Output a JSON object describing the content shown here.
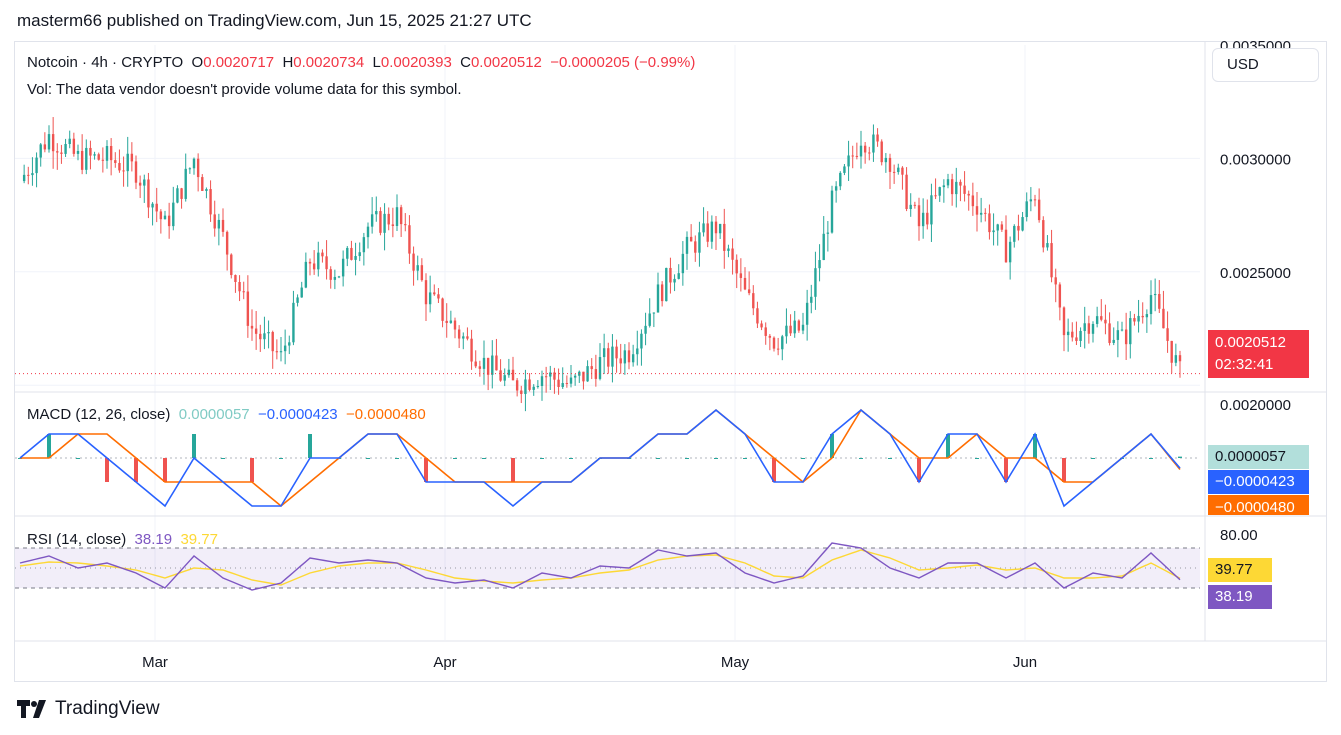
{
  "header": {
    "text": "masterm66 published on TradingView.com, Jun 15, 2025 21:27 UTC"
  },
  "legend": {
    "symbol": "Notcoin · 4h · CRYPTO",
    "o_label": "O",
    "o_value": "0.0020717",
    "h_label": "H",
    "h_value": "0.0020734",
    "l_label": "L",
    "l_value": "0.0020393",
    "c_label": "C",
    "c_value": "0.0020512",
    "change": "−0.0000205 (−0.99%)",
    "vol_text": "Vol: The data vendor doesn't provide volume data for this symbol."
  },
  "currency_button": "USD",
  "price_tag": {
    "price": "0.0020512",
    "countdown": "02:32:41",
    "color": "#f23645"
  },
  "macd": {
    "title": "MACD (12, 26, close)",
    "hist": "0.0000057",
    "macd": "−0.0000423",
    "signal": "−0.0000480",
    "tag_hist": "0.0000057",
    "tag_macd": "−0.0000423",
    "tag_signal": "−0.0000480",
    "colors": {
      "macd": "#2962ff",
      "signal": "#ff6d00",
      "hist_up": "#26a69a",
      "hist_down": "#ef5350",
      "hist_value": "#b2dfdb"
    }
  },
  "rsi": {
    "title": "RSI (14, close)",
    "value": "38.19",
    "ma": "39.77",
    "tag_value": "38.19",
    "tag_ma": "39.77",
    "colors": {
      "rsi": "#7e57c2",
      "ma": "#fdd835"
    }
  },
  "footer": {
    "brand": "TradingView",
    "logo": "tradingview-logo-icon"
  },
  "chart_data": [
    {
      "type": "candlestick",
      "title": "Notcoin · 4h · CRYPTO",
      "x_ticks": [
        "Mar",
        "Apr",
        "May",
        "Jun"
      ],
      "y_ticks": [
        "0.0030000",
        "0.0025000",
        "0.0020000"
      ],
      "y_partial_tick": "0.0035000",
      "ylim": [
        0.00197,
        0.0035
      ],
      "last_price": 0.0020512,
      "colors": {
        "up": "#26a69a",
        "down": "#ef5350"
      },
      "x": [
        "Feb 15",
        "Feb 18",
        "Feb 21",
        "Feb 24",
        "Feb 27",
        "Mar 2",
        "Mar 5",
        "Mar 8",
        "Mar 11",
        "Mar 14",
        "Mar 17",
        "Mar 20",
        "Mar 23",
        "Mar 26",
        "Mar 29",
        "Apr 1",
        "Apr 4",
        "Apr 7",
        "Apr 10",
        "Apr 13",
        "Apr 16",
        "Apr 19",
        "Apr 22",
        "Apr 25",
        "Apr 28",
        "May 1",
        "May 4",
        "May 7",
        "May 10",
        "May 13",
        "May 16",
        "May 19",
        "May 22",
        "May 25",
        "May 28",
        "May 31",
        "Jun 3",
        "Jun 6",
        "Jun 9",
        "Jun 12",
        "Jun 15"
      ],
      "close": [
        0.0029,
        0.0031,
        0.003,
        0.003,
        0.00295,
        0.0027,
        0.003,
        0.00265,
        0.00225,
        0.00212,
        0.00255,
        0.0025,
        0.0027,
        0.00275,
        0.0024,
        0.00225,
        0.0021,
        0.002,
        0.00205,
        0.002,
        0.0021,
        0.00215,
        0.0024,
        0.0026,
        0.0027,
        0.0024,
        0.0022,
        0.00225,
        0.0028,
        0.0031,
        0.003,
        0.0027,
        0.0029,
        0.0028,
        0.0026,
        0.00285,
        0.0022,
        0.0023,
        0.0022,
        0.0024,
        0.00205
      ]
    },
    {
      "type": "line",
      "title": "MACD (12, 26, close)",
      "y_ticks": [
        "0.0002000"
      ],
      "series": [
        {
          "values": [
            0.0,
            0.0001,
            0.0001,
            0.0,
            -0.0001,
            -0.0002,
            0.0,
            -0.0001,
            -0.0002,
            -0.0002,
            0.0,
            0.0,
            0.0001,
            0.0001,
            -0.0001,
            -0.0001,
            -0.0001,
            -0.0002,
            -0.0001,
            -0.0001,
            0.0,
            0.0,
            0.0001,
            0.0001,
            0.0002,
            0.0001,
            -0.0001,
            -0.0001,
            0.0001,
            0.0002,
            0.0001,
            -0.0001,
            0.0001,
            0.0001,
            -0.0001,
            0.0001,
            -0.0002,
            -0.0001,
            0.0,
            0.0001,
            -4.23e-05
          ]
        },
        {
          "values": [
            0.0,
            0.0,
            0.0001,
            0.0001,
            0.0,
            -0.0001,
            -0.0001,
            -0.0001,
            -0.0001,
            -0.0002,
            -0.0001,
            0.0,
            0.0001,
            0.0001,
            0.0,
            -0.0001,
            -0.0001,
            -0.0001,
            -0.0001,
            -0.0001,
            0.0,
            0.0,
            0.0001,
            0.0001,
            0.0002,
            0.0001,
            0.0,
            -0.0001,
            0.0,
            0.0002,
            0.0001,
            0.0,
            0.0,
            0.0001,
            0.0,
            0.0,
            -0.0001,
            -0.0001,
            0.0,
            0.0001,
            -4.8e-05
          ]
        }
      ]
    },
    {
      "type": "line",
      "title": "RSI (14, close)",
      "y_ticks": [
        "80.00"
      ],
      "band": [
        30,
        70
      ],
      "series": [
        {
          "values": [
            55,
            62,
            50,
            55,
            45,
            30,
            62,
            40,
            28,
            35,
            60,
            55,
            58,
            55,
            40,
            35,
            38,
            30,
            45,
            40,
            52,
            50,
            68,
            62,
            65,
            45,
            35,
            42,
            75,
            70,
            50,
            40,
            55,
            55,
            40,
            55,
            30,
            45,
            40,
            65,
            38.19
          ]
        },
        {
          "values": [
            52,
            56,
            55,
            52,
            48,
            40,
            50,
            48,
            38,
            33,
            45,
            52,
            55,
            55,
            48,
            40,
            37,
            35,
            38,
            40,
            45,
            48,
            58,
            62,
            63,
            55,
            42,
            40,
            58,
            68,
            60,
            48,
            50,
            53,
            48,
            50,
            40,
            40,
            42,
            55,
            39.77
          ]
        }
      ]
    }
  ]
}
